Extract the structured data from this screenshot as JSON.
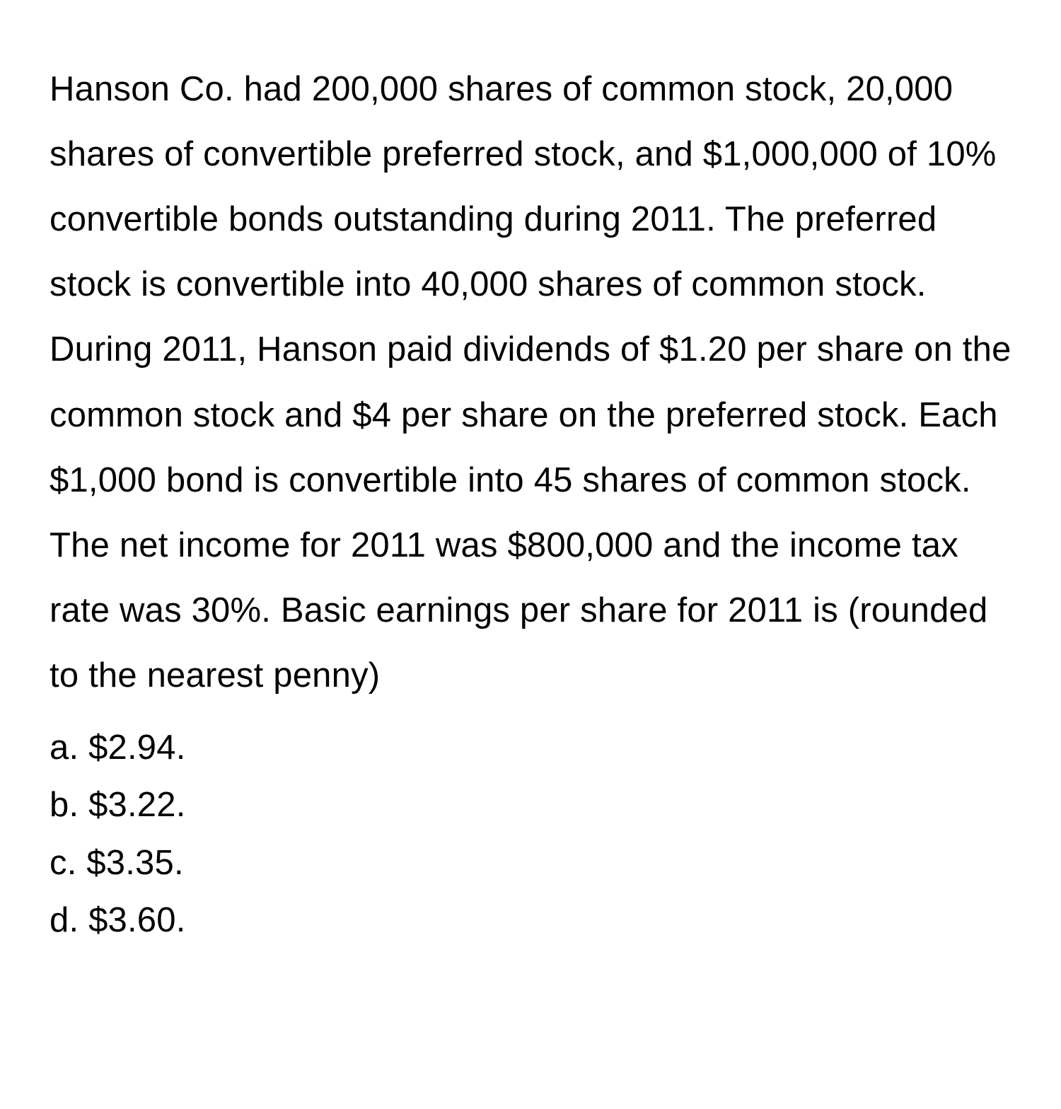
{
  "question": {
    "text": "Hanson Co. had 200,000 shares of common stock, 20,000 shares of convertible preferred stock, and $1,000,000 of 10% convertible bonds outstanding during 2011. The preferred stock is convertible into 40,000 shares of common stock. During 2011, Hanson paid dividends of $1.20 per share on the common stock and $4 per share on the preferred stock. Each $1,000 bond is convertible into 45 shares of common stock. The net income for 2011 was $800,000 and the income tax rate was 30%. Basic earnings per share for 2011 is (rounded to the nearest penny)"
  },
  "options": {
    "a": "a. $2.94.",
    "b": "b. $3.22.",
    "c": "c. $3.35.",
    "d": "d. $3.60."
  }
}
